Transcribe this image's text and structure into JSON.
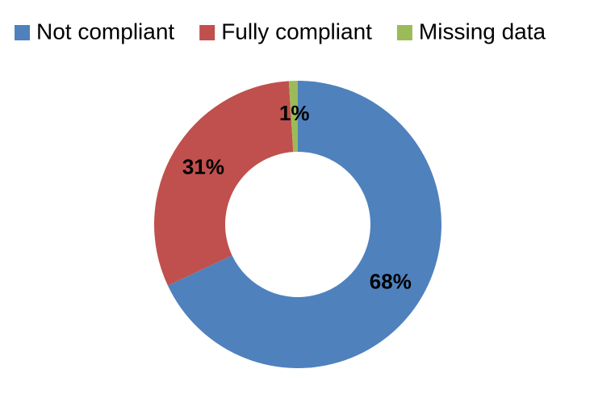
{
  "chart_data": {
    "type": "donut",
    "categories": [
      "Not compliant",
      "Fully compliant",
      "Missing data"
    ],
    "values": [
      68,
      31,
      1
    ],
    "value_labels": [
      "68%",
      "31%",
      "1%"
    ],
    "colors": [
      "#4f81bd",
      "#c0504d",
      "#9bbb59"
    ],
    "legend": "top"
  }
}
